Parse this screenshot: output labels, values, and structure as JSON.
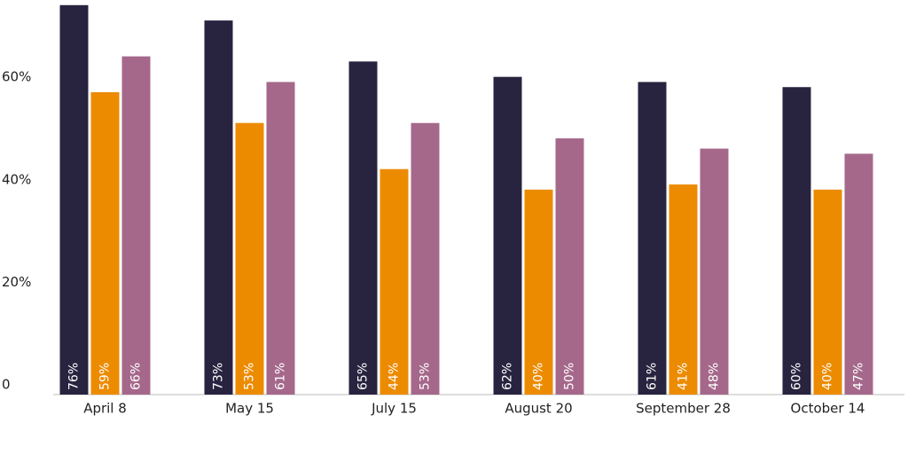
{
  "chart_data": {
    "type": "bar",
    "categories": [
      "April 8",
      "May 15",
      "July 15",
      "August 20",
      "September 28",
      "October 14"
    ],
    "series": [
      {
        "color": "#28233f",
        "values": [
          76,
          73,
          65,
          62,
          61,
          60
        ],
        "value_labels": [
          "76%",
          "73%",
          "65%",
          "62%",
          "61%",
          "60%"
        ]
      },
      {
        "color": "#ec8b00",
        "values": [
          59,
          53,
          44,
          40,
          41,
          40
        ],
        "value_labels": [
          "59%",
          "53%",
          "44%",
          "40%",
          "41%",
          "40%"
        ]
      },
      {
        "color": "#a5688b",
        "values": [
          66,
          61,
          53,
          50,
          48,
          47
        ],
        "value_labels": [
          "66%",
          "61%",
          "53%",
          "50%",
          "48%",
          "47%"
        ]
      }
    ],
    "ylim": [
      0,
      77
    ],
    "yticks": [
      0,
      {
        "value": 20,
        "label": "20%"
      },
      {
        "value": 40,
        "label": "40%"
      },
      {
        "value": 60,
        "label": "60%"
      }
    ],
    "grid": false
  }
}
